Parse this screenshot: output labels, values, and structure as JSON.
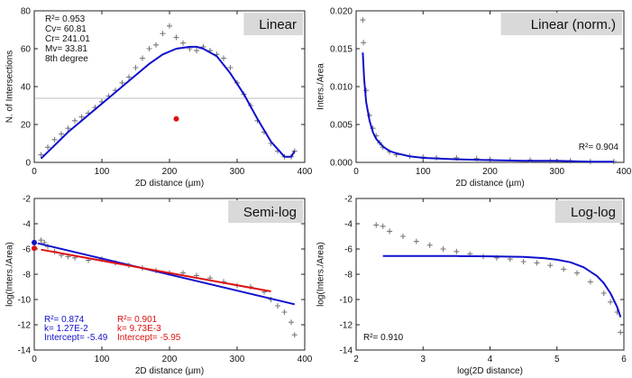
{
  "chart_data": [
    {
      "type": "scatter",
      "title": "Linear",
      "xlabel": "2D distance (µm)",
      "ylabel": "N. of Intersections",
      "xlim": [
        0,
        400
      ],
      "ylim": [
        0,
        80
      ],
      "xticks": [
        "0",
        "100",
        "200",
        "300",
        "400"
      ],
      "yticks": [
        "0",
        "20",
        "40",
        "60",
        "80"
      ],
      "annotations": [
        "R²= 0.953",
        "Cv= 60.81",
        "Cr= 241.01",
        "Mv= 33.81",
        "8th degree"
      ],
      "mean_value_line": 33.81,
      "centroid_point": {
        "x": 210,
        "y": 23
      },
      "series": [
        {
          "name": "data",
          "style": "markers",
          "x": [
            10,
            20,
            30,
            40,
            50,
            60,
            70,
            80,
            90,
            100,
            110,
            120,
            130,
            140,
            150,
            160,
            170,
            180,
            190,
            200,
            210,
            220,
            230,
            240,
            250,
            260,
            270,
            280,
            290,
            300,
            310,
            320,
            330,
            340,
            350,
            360,
            370,
            380,
            385
          ],
          "y": [
            4,
            8,
            12,
            15,
            18,
            22,
            24,
            26,
            29,
            32,
            35,
            38,
            42,
            45,
            50,
            55,
            60,
            62,
            68,
            72,
            66,
            63,
            60,
            59,
            61,
            59,
            57,
            55,
            50,
            42,
            36,
            30,
            22,
            16,
            10,
            6,
            3,
            3,
            6
          ]
        },
        {
          "name": "fit",
          "style": "line",
          "x": [
            10,
            30,
            50,
            70,
            90,
            110,
            130,
            150,
            170,
            190,
            210,
            230,
            240,
            250,
            270,
            290,
            310,
            330,
            350,
            370,
            380,
            385
          ],
          "y": [
            2,
            9,
            16,
            22,
            28,
            34,
            40,
            46,
            52,
            57,
            60,
            61,
            61,
            60,
            56,
            47,
            36,
            23,
            11,
            3,
            3,
            6
          ]
        }
      ]
    },
    {
      "type": "scatter",
      "title": "Linear (norm.)",
      "xlabel": "2D distance (µm)",
      "ylabel": "Inters./Area",
      "xlim": [
        0,
        400
      ],
      "ylim": [
        0,
        0.02
      ],
      "xticks": [
        "0",
        "100",
        "200",
        "300",
        "400"
      ],
      "yticks": [
        "0.000",
        "0.005",
        "0.010",
        "0.015",
        "0.020"
      ],
      "annotations": [
        "R²= 0.904"
      ],
      "series": [
        {
          "name": "data",
          "style": "markers",
          "x": [
            10,
            11,
            15,
            20,
            25,
            30,
            35,
            40,
            50,
            60,
            80,
            100,
            120,
            150,
            180,
            200,
            230,
            260,
            290,
            320,
            350,
            385
          ],
          "y": [
            0.0188,
            0.0158,
            0.0095,
            0.0062,
            0.0045,
            0.0035,
            0.0026,
            0.002,
            0.0014,
            0.001,
            0.0008,
            0.0007,
            0.0006,
            0.0006,
            0.0005,
            0.0004,
            0.0003,
            0.0003,
            0.0002,
            0.0002,
            0.0001,
            0.0001
          ]
        },
        {
          "name": "fit",
          "style": "line",
          "x": [
            10,
            12,
            15,
            20,
            25,
            30,
            40,
            50,
            60,
            80,
            100,
            150,
            200,
            250,
            300,
            350,
            385
          ],
          "y": [
            0.0145,
            0.011,
            0.008,
            0.0055,
            0.004,
            0.0031,
            0.0021,
            0.0015,
            0.0012,
            0.0008,
            0.0006,
            0.0004,
            0.0003,
            0.0002,
            0.0002,
            0.0001,
            0.0001
          ]
        }
      ]
    },
    {
      "type": "scatter",
      "title": "Semi-log",
      "xlabel": "2D distance (µm)",
      "ylabel": "log(Inters./Area)",
      "xlim": [
        0,
        400
      ],
      "ylim": [
        -14,
        -2
      ],
      "xticks": [
        "0",
        "100",
        "200",
        "300",
        "400"
      ],
      "yticks": [
        "-2",
        "-4",
        "-6",
        "-8",
        "-10",
        "-12",
        "-14"
      ],
      "annotations_blue": [
        "R²= 0.874",
        "k= 1.27E-2",
        "Intercept= -5.49"
      ],
      "annotations_red": [
        "R²= 0.901",
        "k= 9.73E-3",
        "Intercept= -5.95"
      ],
      "intercept_points": [
        {
          "x": 0,
          "y": -5.49,
          "color": "#1010cc"
        },
        {
          "x": 0,
          "y": -5.95,
          "color": "#dd1111"
        }
      ],
      "series": [
        {
          "name": "data",
          "style": "markers",
          "x": [
            10,
            15,
            20,
            30,
            40,
            50,
            60,
            80,
            100,
            120,
            140,
            160,
            180,
            200,
            220,
            240,
            260,
            280,
            300,
            320,
            340,
            350,
            360,
            370,
            380,
            385
          ],
          "y": [
            -5.3,
            -5.5,
            -5.8,
            -6.2,
            -6.5,
            -6.6,
            -6.7,
            -6.9,
            -6.8,
            -7.1,
            -7.3,
            -7.5,
            -7.7,
            -7.9,
            -7.9,
            -8.1,
            -8.3,
            -8.6,
            -8.9,
            -9.0,
            -9.4,
            -10.0,
            -10.5,
            -11.0,
            -11.8,
            -12.8
          ]
        },
        {
          "name": "fit-blue",
          "style": "line",
          "color": "#1010cc",
          "x": [
            5,
            385
          ],
          "y": [
            -5.55,
            -10.38
          ]
        },
        {
          "name": "fit-red",
          "style": "line",
          "color": "#dd1111",
          "x": [
            10,
            350
          ],
          "y": [
            -6.05,
            -9.36
          ]
        }
      ]
    },
    {
      "type": "scatter",
      "title": "Log-log",
      "xlabel": "log(2D distance)",
      "ylabel": "log(Inters./Area)",
      "xlim": [
        2,
        6
      ],
      "ylim": [
        -14,
        -2
      ],
      "xticks": [
        "2",
        "3",
        "4",
        "5",
        "6"
      ],
      "yticks": [
        "-2",
        "-4",
        "-6",
        "-8",
        "-10",
        "-12",
        "-14"
      ],
      "annotations": [
        "R²= 0.910"
      ],
      "series": [
        {
          "name": "data",
          "style": "markers",
          "x": [
            2.3,
            2.4,
            2.5,
            2.7,
            2.9,
            3.1,
            3.3,
            3.5,
            3.7,
            3.9,
            4.1,
            4.3,
            4.5,
            4.7,
            4.9,
            5.1,
            5.3,
            5.5,
            5.7,
            5.8,
            5.9,
            5.95
          ],
          "y": [
            -4.1,
            -4.2,
            -4.6,
            -5.0,
            -5.4,
            -5.7,
            -6.0,
            -6.2,
            -6.4,
            -6.6,
            -6.7,
            -6.8,
            -7.0,
            -7.1,
            -7.3,
            -7.6,
            -7.9,
            -8.6,
            -9.5,
            -10.2,
            -11.0,
            -12.6
          ]
        },
        {
          "name": "fit",
          "style": "line",
          "x": [
            2.4,
            3.0,
            3.5,
            4.0,
            4.5,
            4.8,
            5.0,
            5.2,
            5.4,
            5.6,
            5.7,
            5.8,
            5.9,
            5.95
          ],
          "y": [
            -6.55,
            -6.55,
            -6.56,
            -6.58,
            -6.62,
            -6.72,
            -6.85,
            -7.05,
            -7.45,
            -8.15,
            -8.7,
            -9.5,
            -10.6,
            -11.4
          ]
        }
      ]
    }
  ]
}
